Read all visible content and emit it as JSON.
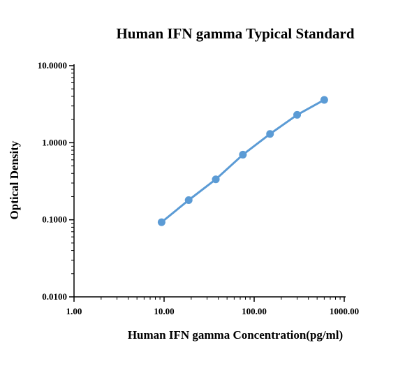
{
  "chart_data": {
    "type": "line",
    "title": "Human IFN gamma Typical Standard",
    "xlabel": "Human IFN gamma  Concentration(pg/ml)",
    "ylabel": "Optical Density",
    "x_scale": "log",
    "y_scale": "log",
    "xlim": [
      1,
      1000
    ],
    "ylim": [
      0.01,
      10
    ],
    "x_ticks": [
      "1.00",
      "10.00",
      "100.00",
      "1000.00"
    ],
    "y_ticks": [
      "0.0100",
      "0.1000",
      "1.0000",
      "10.0000"
    ],
    "grid": false,
    "legend": "none",
    "series": [
      {
        "x": [
          9.38,
          18.75,
          37.5,
          75,
          150,
          300,
          600
        ],
        "y": [
          0.093,
          0.18,
          0.335,
          0.7,
          1.3,
          2.3,
          3.6
        ],
        "color": "#5b9bd5"
      }
    ]
  }
}
